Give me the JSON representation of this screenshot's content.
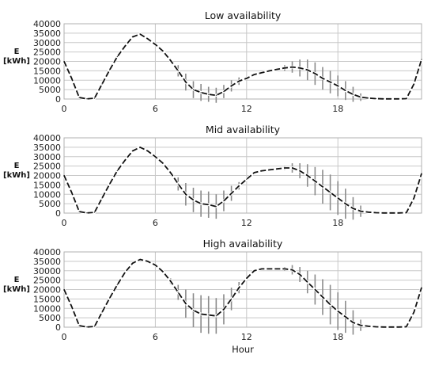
{
  "chart_data": [
    {
      "type": "line",
      "title": "Low availability",
      "ylabel_line1": "E",
      "ylabel_line2": "[kWh]",
      "xlabel": "",
      "xlim": [
        0,
        23.5
      ],
      "ylim": [
        0,
        40000
      ],
      "xticks": [
        0,
        6,
        12,
        18
      ],
      "yticks": [
        0,
        5000,
        10000,
        15000,
        20000,
        25000,
        30000,
        35000,
        40000
      ],
      "grid": true,
      "series": [
        {
          "x": [
            0,
            0.5,
            1,
            1.5,
            2,
            2.5,
            3,
            3.5,
            4,
            4.5,
            5,
            5.5,
            6,
            6.5,
            7,
            7.5,
            8,
            8.5,
            9,
            9.5,
            10,
            10.5,
            11,
            11.5,
            12,
            12.5,
            13,
            13.5,
            14,
            14.5,
            15,
            15.5,
            16,
            16.5,
            17,
            17.5,
            18,
            18.5,
            19,
            19.5,
            20,
            20.5,
            21,
            21.5,
            22,
            22.5,
            23,
            23.5
          ],
          "values": [
            20000,
            11000,
            800,
            100,
            400,
            8000,
            15500,
            22500,
            28000,
            33000,
            34500,
            32000,
            29000,
            25500,
            20500,
            15000,
            9000,
            5000,
            3500,
            2500,
            2000,
            4000,
            7000,
            9500,
            11000,
            13000,
            14000,
            15000,
            15800,
            16500,
            17000,
            16500,
            15500,
            13500,
            11000,
            9000,
            7000,
            4500,
            2500,
            1000,
            500,
            200,
            100,
            100,
            100,
            200,
            8000,
            21000
          ],
          "err": [
            0,
            0,
            0,
            0,
            0,
            0,
            0,
            0,
            0,
            0,
            0,
            0,
            0,
            0,
            0,
            3000,
            4500,
            4500,
            4500,
            4000,
            4000,
            3500,
            3000,
            2000,
            0,
            0,
            0,
            0,
            0,
            1500,
            3000,
            4500,
            5500,
            6000,
            6000,
            6000,
            5500,
            5000,
            4000,
            2000,
            0,
            0,
            0,
            0,
            0,
            0,
            0,
            0
          ]
        }
      ]
    },
    {
      "type": "line",
      "title": "Mid availability",
      "ylabel_line1": "E",
      "ylabel_line2": "[kWh]",
      "xlabel": "",
      "xlim": [
        0,
        23.5
      ],
      "ylim": [
        0,
        40000
      ],
      "xticks": [
        0,
        6,
        12,
        18
      ],
      "yticks": [
        0,
        5000,
        10000,
        15000,
        20000,
        25000,
        30000,
        35000,
        40000
      ],
      "grid": true,
      "series": [
        {
          "x": [
            0,
            0.5,
            1,
            1.5,
            2,
            2.5,
            3,
            3.5,
            4,
            4.5,
            5,
            5.5,
            6,
            6.5,
            7,
            7.5,
            8,
            8.5,
            9,
            9.5,
            10,
            10.5,
            11,
            11.5,
            12,
            12.5,
            13,
            13.5,
            14,
            14.5,
            15,
            15.5,
            16,
            16.5,
            17,
            17.5,
            18,
            18.5,
            19,
            19.5,
            20,
            20.5,
            21,
            21.5,
            22,
            22.5,
            23,
            23.5
          ],
          "values": [
            20000,
            11000,
            800,
            100,
            400,
            8000,
            15500,
            22500,
            28000,
            33000,
            35000,
            33000,
            30000,
            26500,
            21500,
            15500,
            10000,
            7000,
            5000,
            4500,
            3500,
            6500,
            10500,
            14500,
            18000,
            21500,
            22500,
            23000,
            23500,
            24000,
            24000,
            22500,
            20000,
            17000,
            14000,
            11000,
            8000,
            5000,
            2500,
            1000,
            500,
            200,
            100,
            100,
            100,
            200,
            8000,
            21000
          ],
          "err": [
            0,
            0,
            0,
            0,
            0,
            0,
            0,
            0,
            0,
            0,
            0,
            0,
            0,
            0,
            0,
            3500,
            6000,
            6500,
            7000,
            7000,
            6500,
            5500,
            4000,
            2000,
            0,
            0,
            0,
            0,
            0,
            1000,
            2500,
            4000,
            6000,
            7500,
            9000,
            9500,
            9000,
            8000,
            6000,
            3000,
            0,
            0,
            0,
            0,
            0,
            0,
            0,
            0
          ]
        }
      ]
    },
    {
      "type": "line",
      "title": "High availability",
      "ylabel_line1": "E",
      "ylabel_line2": "[kWh]",
      "xlabel": "Hour",
      "xlim": [
        0,
        23.5
      ],
      "ylim": [
        0,
        40000
      ],
      "xticks": [
        0,
        6,
        12,
        18
      ],
      "yticks": [
        0,
        5000,
        10000,
        15000,
        20000,
        25000,
        30000,
        35000,
        40000
      ],
      "grid": true,
      "series": [
        {
          "x": [
            0,
            0.5,
            1,
            1.5,
            2,
            2.5,
            3,
            3.5,
            4,
            4.5,
            5,
            5.5,
            6,
            6.5,
            7,
            7.5,
            8,
            8.5,
            9,
            9.5,
            10,
            10.5,
            11,
            11.5,
            12,
            12.5,
            13,
            13.5,
            14,
            14.5,
            15,
            15.5,
            16,
            16.5,
            17,
            17.5,
            18,
            18.5,
            19,
            19.5,
            20,
            20.5,
            21,
            21.5,
            22,
            22.5,
            23,
            23.5
          ],
          "values": [
            20000,
            11000,
            800,
            100,
            400,
            8000,
            15500,
            22500,
            29000,
            34000,
            36000,
            35000,
            33000,
            29500,
            24500,
            18500,
            12500,
            9000,
            7000,
            6500,
            6000,
            9500,
            15000,
            21000,
            26000,
            30000,
            31000,
            31000,
            31000,
            31000,
            30500,
            28000,
            24000,
            20000,
            16000,
            12000,
            8500,
            5500,
            2500,
            1000,
            500,
            200,
            100,
            100,
            100,
            200,
            8000,
            21000
          ],
          "err": [
            0,
            0,
            0,
            0,
            0,
            0,
            0,
            0,
            0,
            0,
            0,
            0,
            0,
            0,
            1500,
            4000,
            7500,
            9000,
            10000,
            10000,
            9500,
            8000,
            6000,
            3000,
            0,
            0,
            0,
            0,
            0,
            1000,
            2500,
            4000,
            6000,
            8000,
            9500,
            10500,
            10000,
            8500,
            6500,
            3000,
            0,
            0,
            0,
            0,
            0,
            0,
            0,
            0
          ]
        }
      ]
    }
  ]
}
